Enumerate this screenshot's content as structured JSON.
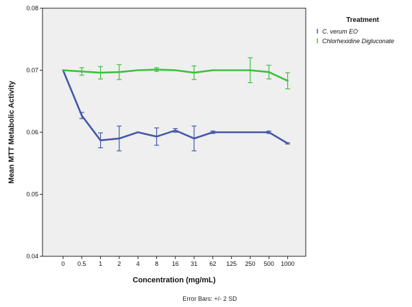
{
  "chart_data": {
    "type": "line",
    "xlabel": "Concentration (mg/mL)",
    "ylabel": "Mean MTT Metabolic Activity",
    "categories": [
      "0",
      "0.5",
      "1",
      "2",
      "4",
      "8",
      "16",
      "31",
      "62",
      "125",
      "250",
      "500",
      "1000"
    ],
    "ylim": [
      0.04,
      0.08
    ],
    "yticks": [
      "0.04",
      "0.05",
      "0.06",
      "0.07",
      "0.08"
    ],
    "grid": false,
    "background": "#efefef",
    "legend": {
      "title": "Treatment",
      "placement": "right",
      "error_symbol": "I"
    },
    "series": [
      {
        "name": "C. verum EO",
        "color": "#4457a8",
        "values": [
          0.07,
          0.0627,
          0.0587,
          0.059,
          0.06,
          0.0593,
          0.0603,
          0.059,
          0.06,
          0.06,
          0.06,
          0.06,
          0.0582
        ],
        "errors": [
          0.0,
          0.0005,
          0.0012,
          0.002,
          0.0,
          0.0014,
          0.0003,
          0.002,
          0.0002,
          0.0,
          0.0,
          0.0002,
          0.0001
        ]
      },
      {
        "name": "Chlorhexidine Digluconate",
        "color": "#3cbf3c",
        "values": [
          0.07,
          0.0698,
          0.0696,
          0.0697,
          0.07,
          0.0701,
          0.07,
          0.0696,
          0.07,
          0.07,
          0.07,
          0.0697,
          0.0683
        ],
        "errors": [
          0.0,
          0.0006,
          0.001,
          0.0012,
          0.0,
          0.0003,
          0.0,
          0.0011,
          0.0,
          0.0,
          0.002,
          0.0011,
          0.0013
        ]
      }
    ],
    "footnote": "Error Bars: +/- 2 SD"
  }
}
